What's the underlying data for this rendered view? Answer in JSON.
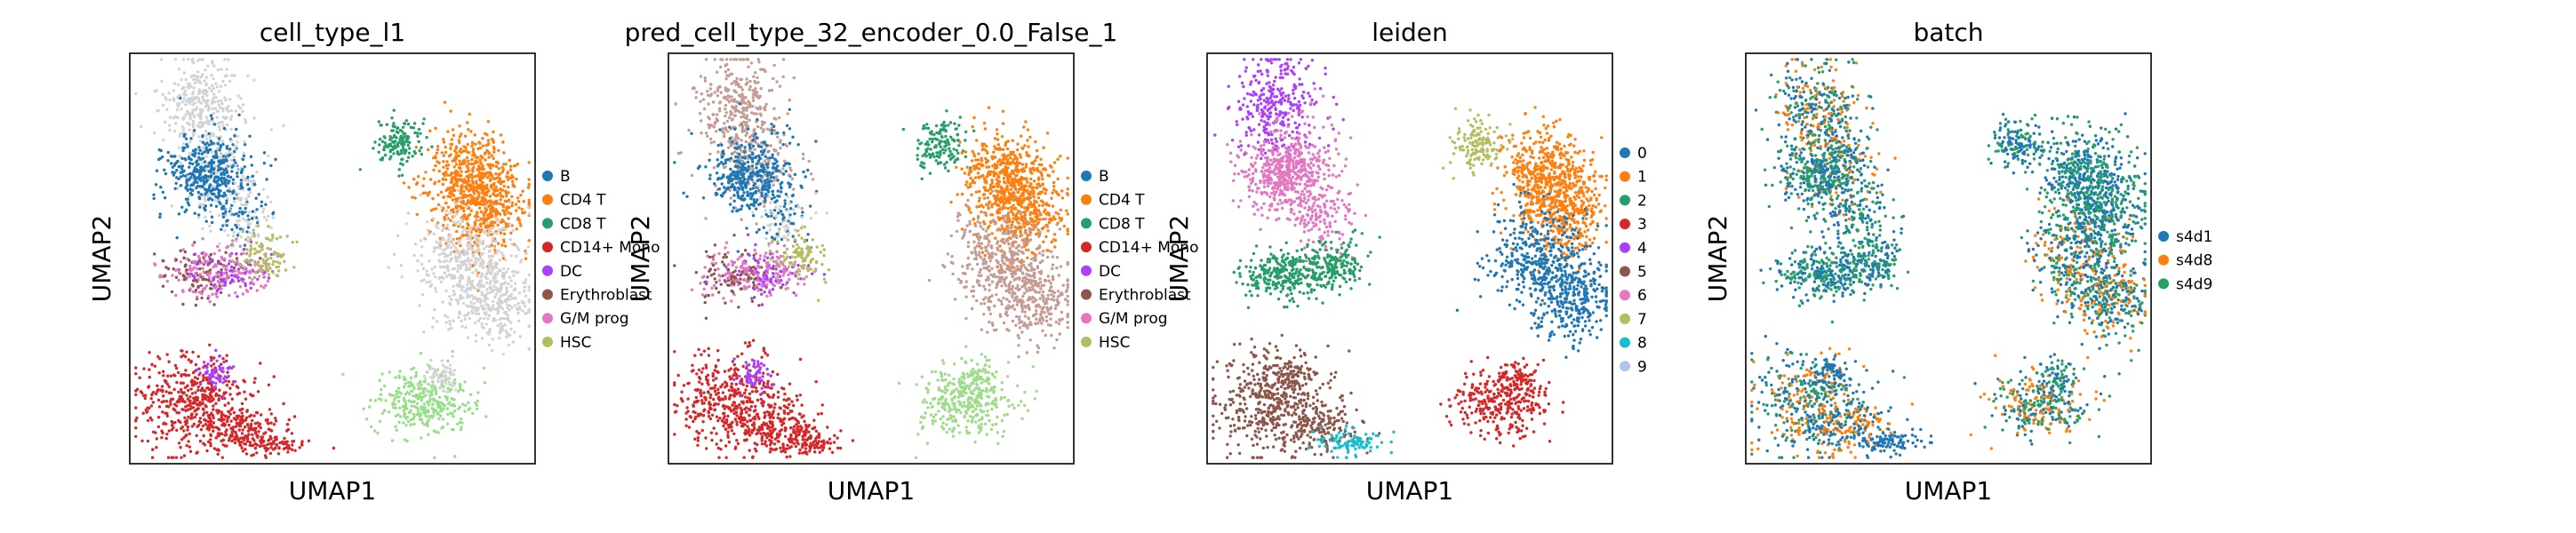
{
  "chart_data": [
    {
      "type": "scatter",
      "title": "cell_type_l1",
      "xlabel": "UMAP1",
      "ylabel": "UMAP2",
      "grid": false,
      "legend_position": "right",
      "series": [
        {
          "name": "B",
          "color": "#1f77b4"
        },
        {
          "name": "CD4 T",
          "color": "#ff7f0e"
        },
        {
          "name": "CD8 T",
          "color": "#279e68"
        },
        {
          "name": "CD14+ Mono",
          "color": "#d62728"
        },
        {
          "name": "DC",
          "color": "#aa40fc"
        },
        {
          "name": "Erythroblast",
          "color": "#8c564b"
        },
        {
          "name": "G/M prog",
          "color": "#e377c2"
        },
        {
          "name": "HSC",
          "color": "#b5bd61"
        }
      ]
    },
    {
      "type": "scatter",
      "title": "pred_cell_type_32_encoder_0.0_False_1",
      "xlabel": "UMAP1",
      "ylabel": "UMAP2",
      "grid": false,
      "legend_position": "right",
      "series": [
        {
          "name": "B",
          "color": "#1f77b4"
        },
        {
          "name": "CD4 T",
          "color": "#ff7f0e"
        },
        {
          "name": "CD8 T",
          "color": "#279e68"
        },
        {
          "name": "CD14+ Mono",
          "color": "#d62728"
        },
        {
          "name": "DC",
          "color": "#aa40fc"
        },
        {
          "name": "Erythroblast",
          "color": "#8c564b"
        },
        {
          "name": "G/M prog",
          "color": "#e377c2"
        },
        {
          "name": "HSC",
          "color": "#b5bd61"
        }
      ]
    },
    {
      "type": "scatter",
      "title": "leiden",
      "xlabel": "UMAP1",
      "ylabel": "UMAP2",
      "grid": false,
      "legend_position": "right",
      "series": [
        {
          "name": "0",
          "color": "#1f77b4"
        },
        {
          "name": "1",
          "color": "#ff7f0e"
        },
        {
          "name": "2",
          "color": "#279e68"
        },
        {
          "name": "3",
          "color": "#d62728"
        },
        {
          "name": "4",
          "color": "#aa40fc"
        },
        {
          "name": "5",
          "color": "#8c564b"
        },
        {
          "name": "6",
          "color": "#e377c2"
        },
        {
          "name": "7",
          "color": "#b5bd61"
        },
        {
          "name": "8",
          "color": "#17becf"
        },
        {
          "name": "9",
          "color": "#aec7e8"
        }
      ]
    },
    {
      "type": "scatter",
      "title": "batch",
      "xlabel": "UMAP1",
      "ylabel": "UMAP2",
      "grid": false,
      "legend_position": "right",
      "series": [
        {
          "name": "s4d1",
          "color": "#1f77b4"
        },
        {
          "name": "s4d8",
          "color": "#ff7f0e"
        },
        {
          "name": "s4d9",
          "color": "#279e68"
        }
      ]
    }
  ]
}
